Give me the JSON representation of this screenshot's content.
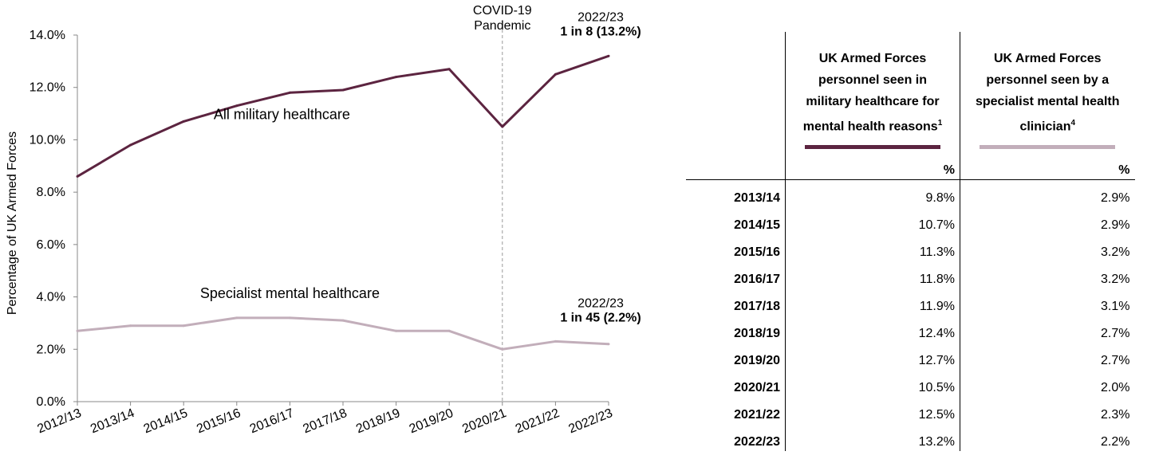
{
  "chart_data": {
    "type": "line",
    "ylabel": "Percentage of UK Armed Forces",
    "x": [
      "2012/13",
      "2013/14",
      "2014/15",
      "2015/16",
      "2016/17",
      "2017/18",
      "2018/19",
      "2019/20",
      "2020/21",
      "2021/22",
      "2022/23"
    ],
    "ylim": [
      0,
      14
    ],
    "yticks": [
      "0.0%",
      "2.0%",
      "4.0%",
      "6.0%",
      "8.0%",
      "10.0%",
      "12.0%",
      "14.0%"
    ],
    "grid": false,
    "series": [
      {
        "name": "All military healthcare",
        "color": "#5c2440",
        "values": [
          8.6,
          9.8,
          10.7,
          11.3,
          11.8,
          11.9,
          12.4,
          12.7,
          10.5,
          12.5,
          13.2
        ]
      },
      {
        "name": "Specialist mental healthcare",
        "color": "#c2aeba",
        "values": [
          2.7,
          2.9,
          2.9,
          3.2,
          3.2,
          3.1,
          2.7,
          2.7,
          2.0,
          2.3,
          2.2
        ]
      }
    ],
    "marker": {
      "at": "2020/21",
      "line1": "COVID-19",
      "line2": "Pandemic"
    },
    "annotations": [
      {
        "series": 0,
        "line1": "2022/23",
        "line2": "1 in 8 (13.2%)"
      },
      {
        "series": 1,
        "line1": "2022/23",
        "line2": "1 in 45 (2.2%)"
      }
    ]
  },
  "table": {
    "col1": {
      "line1": "UK Armed Forces",
      "line2": "personnel seen in",
      "line3": "military healthcare for",
      "line4": "mental health reasons",
      "sup": "1",
      "color": "#5c2440"
    },
    "col2": {
      "line1": "UK Armed Forces",
      "line2": "personnel seen by a",
      "line3": "specialist mental health",
      "line4": "clinician",
      "sup": "4",
      "color": "#c2aeba"
    },
    "unit": "%",
    "rows": [
      {
        "year": "2013/14",
        "military": "9.8%",
        "specialist": "2.9%"
      },
      {
        "year": "2014/15",
        "military": "10.7%",
        "specialist": "2.9%"
      },
      {
        "year": "2015/16",
        "military": "11.3%",
        "specialist": "3.2%"
      },
      {
        "year": "2016/17",
        "military": "11.8%",
        "specialist": "3.2%"
      },
      {
        "year": "2017/18",
        "military": "11.9%",
        "specialist": "3.1%"
      },
      {
        "year": "2018/19",
        "military": "12.4%",
        "specialist": "2.7%"
      },
      {
        "year": "2019/20",
        "military": "12.7%",
        "specialist": "2.7%"
      },
      {
        "year": "2020/21",
        "military": "10.5%",
        "specialist": "2.0%"
      },
      {
        "year": "2021/22",
        "military": "12.5%",
        "specialist": "2.3%"
      },
      {
        "year": "2022/23",
        "military": "13.2%",
        "specialist": "2.2%"
      }
    ]
  }
}
